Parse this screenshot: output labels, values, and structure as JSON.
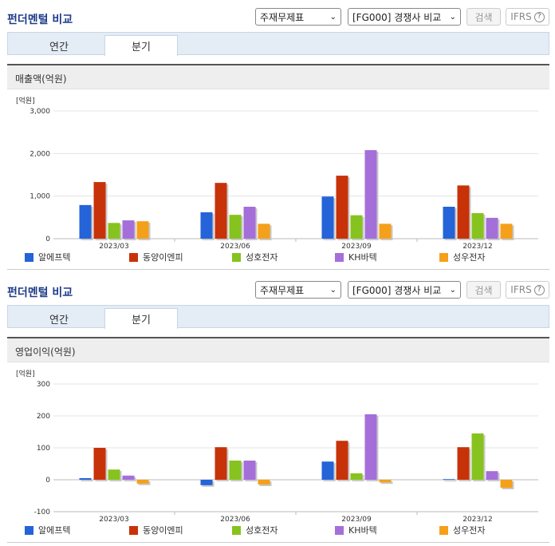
{
  "header": {
    "title": "펀더멘털 비교",
    "statement_select": "주재무제표",
    "peer_select": "[FG000] 경쟁사 비교",
    "search_label": "검색",
    "ifrs_label": "IFRS",
    "help_glyph": "?",
    "chevron": "⌄"
  },
  "tabs": {
    "annual": "연간",
    "quarterly": "분기"
  },
  "colors": {
    "series": [
      "#2563d8",
      "#c83209",
      "#86c31e",
      "#a56fd9",
      "#f5a01a"
    ],
    "accent": "#1f3c88"
  },
  "chart_data": [
    {
      "type": "bar",
      "title": "매출액(억원)",
      "unit": "[억원]",
      "categories": [
        "2023/03",
        "2023/06",
        "2023/09",
        "2023/12"
      ],
      "ylim": [
        0,
        3000
      ],
      "yticks": [
        0,
        1000,
        2000,
        3000
      ],
      "ytick_labels": [
        "0",
        "1,000",
        "2,000",
        "3,000"
      ],
      "grid": true,
      "legend_position": "bottom",
      "series": [
        {
          "name": "알에프텍",
          "values": [
            790,
            620,
            990,
            750
          ]
        },
        {
          "name": "동양이엔피",
          "values": [
            1330,
            1310,
            1480,
            1250
          ]
        },
        {
          "name": "성호전자",
          "values": [
            370,
            560,
            550,
            600
          ]
        },
        {
          "name": "KH바텍",
          "values": [
            430,
            750,
            2080,
            490
          ]
        },
        {
          "name": "성우전자",
          "values": [
            410,
            350,
            350,
            350
          ]
        }
      ]
    },
    {
      "type": "bar",
      "title": "영업이익(억원)",
      "unit": "[억원]",
      "categories": [
        "2023/03",
        "2023/06",
        "2023/09",
        "2023/12"
      ],
      "ylim": [
        -100,
        300
      ],
      "yticks": [
        -100,
        0,
        100,
        200,
        300
      ],
      "ytick_labels": [
        "-100",
        "0",
        "100",
        "200",
        "300"
      ],
      "grid": true,
      "legend_position": "bottom",
      "series": [
        {
          "name": "알에프텍",
          "values": [
            5,
            -17,
            57,
            2
          ]
        },
        {
          "name": "동양이엔피",
          "values": [
            100,
            102,
            122,
            102
          ]
        },
        {
          "name": "성호전자",
          "values": [
            32,
            60,
            20,
            145
          ]
        },
        {
          "name": "KH바텍",
          "values": [
            13,
            60,
            205,
            27
          ]
        },
        {
          "name": "성우전자",
          "values": [
            -12,
            -15,
            -8,
            -25
          ]
        }
      ]
    }
  ]
}
